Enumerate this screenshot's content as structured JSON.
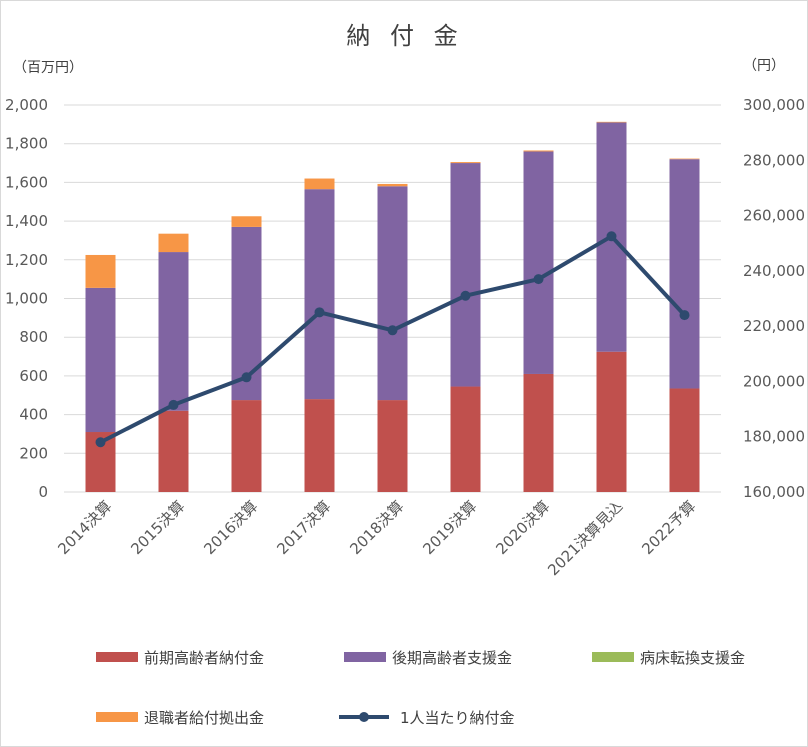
{
  "chart_data": {
    "type": "bar",
    "title": "納 付 金",
    "left_unit": "（百万円）",
    "right_unit": "（円）",
    "categories": [
      "2014決算",
      "2015決算",
      "2016決算",
      "2017決算",
      "2018決算",
      "2019決算",
      "2020決算",
      "2021決算見込",
      "2022予算"
    ],
    "ylim": [
      0,
      2000
    ],
    "y_ticks": [
      "0",
      "200",
      "400",
      "600",
      "800",
      "1,000",
      "1,200",
      "1,400",
      "1,600",
      "1,800",
      "2,000"
    ],
    "y2lim": [
      160000,
      300000
    ],
    "y2_ticks": [
      "160,000",
      "180,000",
      "200,000",
      "220,000",
      "240,000",
      "260,000",
      "280,000",
      "300,000"
    ],
    "grid": true,
    "legend_position": "bottom",
    "series": [
      {
        "name": "前期高齢者納付金",
        "kind": "bar",
        "color": "#c0504d",
        "values": [
          310,
          420,
          475,
          480,
          475,
          545,
          610,
          725,
          535
        ]
      },
      {
        "name": "後期高齢者支援金",
        "kind": "bar",
        "color": "#8064a2",
        "values": [
          745,
          820,
          895,
          1085,
          1105,
          1155,
          1150,
          1185,
          1185
        ]
      },
      {
        "name": "病床転換支援金",
        "kind": "bar",
        "color": "#9bbb59",
        "values": [
          0,
          0,
          0,
          0,
          0,
          0,
          0,
          0,
          0
        ]
      },
      {
        "name": "退職者給付拠出金",
        "kind": "bar",
        "color": "#f79646",
        "values": [
          170,
          95,
          55,
          55,
          12,
          5,
          5,
          3,
          3
        ]
      },
      {
        "name": "1人当たり納付金",
        "kind": "line",
        "axis": "right",
        "color": "#2e4a6e",
        "values": [
          178000,
          191500,
          201500,
          225000,
          218500,
          231000,
          237000,
          252500,
          224000
        ]
      }
    ]
  }
}
